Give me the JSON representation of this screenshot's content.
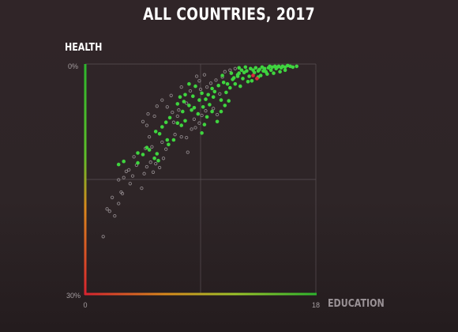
{
  "chart_data": {
    "type": "scatter",
    "title": "ALL COUNTRIES, 2017",
    "ylabel": "HEALTH",
    "xlabel": "EDUCATION",
    "xlim": [
      0,
      18
    ],
    "ylim": [
      0,
      30
    ],
    "y_inverted": true,
    "x_ticks": [
      "0",
      "18"
    ],
    "y_ticks": [
      "0%",
      "30%"
    ],
    "grid": true,
    "legend": "none",
    "colors": {
      "green": "#3fd43f",
      "grey": "#8d8689",
      "red": "#e0283a",
      "axis_top": "#2db52d",
      "axis_mid": "#d98a1c",
      "axis_end": "#d7222f"
    },
    "series": [
      {
        "color": "green",
        "points": [
          [
            2.6,
            13.1
          ],
          [
            3.0,
            12.7
          ],
          [
            4.1,
            12.9
          ],
          [
            4.1,
            11.6
          ],
          [
            4.5,
            11.8
          ],
          [
            4.8,
            10.9
          ],
          [
            5.0,
            11.2
          ],
          [
            5.4,
            12.3
          ],
          [
            5.7,
            12.6
          ],
          [
            5.6,
            11.7
          ],
          [
            5.5,
            8.8
          ],
          [
            5.8,
            9.1
          ],
          [
            6.0,
            8.2
          ],
          [
            6.4,
            9.9
          ],
          [
            6.5,
            10.5
          ],
          [
            6.9,
            9.9
          ],
          [
            6.3,
            7.6
          ],
          [
            6.6,
            7.0
          ],
          [
            7.2,
            7.7
          ],
          [
            7.5,
            8.0
          ],
          [
            7.8,
            7.4
          ],
          [
            7.6,
            6.2
          ],
          [
            7.2,
            5.2
          ],
          [
            7.7,
            4.9
          ],
          [
            8.1,
            5.4
          ],
          [
            7.4,
            4.3
          ],
          [
            7.8,
            4.0
          ],
          [
            8.4,
            4.2
          ],
          [
            8.1,
            2.6
          ],
          [
            8.6,
            2.9
          ],
          [
            8.5,
            5.7
          ],
          [
            8.9,
            4.7
          ],
          [
            9.1,
            3.8
          ],
          [
            9.4,
            4.6
          ],
          [
            9.2,
            5.6
          ],
          [
            9.5,
            6.9
          ],
          [
            9.9,
            6.2
          ],
          [
            9.6,
            4.0
          ],
          [
            9.9,
            3.2
          ],
          [
            10.1,
            3.6
          ],
          [
            10.6,
            4.7
          ],
          [
            10.4,
            2.8
          ],
          [
            10.8,
            2.4
          ],
          [
            11.1,
            2.6
          ],
          [
            11.0,
            3.7
          ],
          [
            11.3,
            3.1
          ],
          [
            10.6,
            6.2
          ],
          [
            11.5,
            2.0
          ],
          [
            11.6,
            1.8
          ],
          [
            11.9,
            1.6
          ],
          [
            12.0,
            1.2
          ],
          [
            12.2,
            0.8
          ],
          [
            12.4,
            1.1
          ],
          [
            12.6,
            0.9
          ],
          [
            12.8,
            1.6
          ],
          [
            12.3,
            1.9
          ],
          [
            12.9,
            0.6
          ],
          [
            13.1,
            0.8
          ],
          [
            13.2,
            1.1
          ],
          [
            13.3,
            0.5
          ],
          [
            13.5,
            0.9
          ],
          [
            13.6,
            0.7
          ],
          [
            13.7,
            1.5
          ],
          [
            13.8,
            0.4
          ],
          [
            14.0,
            0.6
          ],
          [
            14.1,
            1.0
          ],
          [
            14.3,
            0.5
          ],
          [
            14.4,
            0.3
          ],
          [
            14.5,
            0.8
          ],
          [
            14.6,
            0.4
          ],
          [
            14.8,
            0.3
          ],
          [
            14.9,
            0.6
          ],
          [
            15.0,
            0.4
          ],
          [
            15.1,
            0.3
          ],
          [
            15.3,
            0.5
          ],
          [
            15.4,
            0.3
          ],
          [
            15.6,
            0.4
          ],
          [
            15.8,
            0.2
          ],
          [
            16.0,
            0.3
          ],
          [
            16.2,
            0.4
          ],
          [
            16.5,
            0.3
          ],
          [
            12.7,
            2.3
          ],
          [
            11.9,
            1.4
          ],
          [
            13.5,
            1.7
          ],
          [
            12.5,
            0.4
          ],
          [
            13.0,
            2.2
          ],
          [
            14.2,
            1.3
          ],
          [
            12.1,
            2.9
          ],
          [
            11.2,
            4.8
          ],
          [
            10.3,
            7.5
          ],
          [
            10.9,
            5.4
          ],
          [
            9.1,
            9.0
          ],
          [
            8.8,
            6.5
          ],
          [
            9.3,
            7.9
          ],
          [
            8.3,
            6.0
          ],
          [
            9.7,
            5.3
          ],
          [
            10.0,
            4.3
          ],
          [
            11.7,
            2.6
          ],
          [
            10.7,
            1.5
          ],
          [
            11.4,
            1.2
          ],
          [
            12.0,
            0.5
          ],
          [
            14.7,
            1.2
          ],
          [
            13.9,
            0.9
          ],
          [
            15.6,
            0.8
          ],
          [
            15.2,
            1.0
          ]
        ]
      },
      {
        "color": "grey",
        "points": [
          [
            1.4,
            22.5
          ],
          [
            1.7,
            18.9
          ],
          [
            1.9,
            19.2
          ],
          [
            2.3,
            19.8
          ],
          [
            2.1,
            17.4
          ],
          [
            2.6,
            18.2
          ],
          [
            2.8,
            16.7
          ],
          [
            2.6,
            15.1
          ],
          [
            3.0,
            14.8
          ],
          [
            2.9,
            16.9
          ],
          [
            3.2,
            14.0
          ],
          [
            3.5,
            15.6
          ],
          [
            3.7,
            14.6
          ],
          [
            3.4,
            13.8
          ],
          [
            3.8,
            12.1
          ],
          [
            4.0,
            13.2
          ],
          [
            4.4,
            16.2
          ],
          [
            4.6,
            14.3
          ],
          [
            4.8,
            13.4
          ],
          [
            5.1,
            12.8
          ],
          [
            5.3,
            14.1
          ],
          [
            5.5,
            13.0
          ],
          [
            5.8,
            13.5
          ],
          [
            6.1,
            12.3
          ],
          [
            6.3,
            11.1
          ],
          [
            6.0,
            10.2
          ],
          [
            5.0,
            9.5
          ],
          [
            4.8,
            8.0
          ],
          [
            4.5,
            7.5
          ],
          [
            4.9,
            6.5
          ],
          [
            5.4,
            6.8
          ],
          [
            5.6,
            5.5
          ],
          [
            6.0,
            4.7
          ],
          [
            6.4,
            5.6
          ],
          [
            6.7,
            4.1
          ],
          [
            6.8,
            6.3
          ],
          [
            7.2,
            6.8
          ],
          [
            7.0,
            9.2
          ],
          [
            7.5,
            9.5
          ],
          [
            7.9,
            9.6
          ],
          [
            8.0,
            11.5
          ],
          [
            8.3,
            8.5
          ],
          [
            8.6,
            8.3
          ],
          [
            8.9,
            7.7
          ],
          [
            8.5,
            7.2
          ],
          [
            9.1,
            6.7
          ],
          [
            9.4,
            6.1
          ],
          [
            9.0,
            3.3
          ],
          [
            9.5,
            3.0
          ],
          [
            9.8,
            2.5
          ],
          [
            10.2,
            2.1
          ],
          [
            10.7,
            1.7
          ],
          [
            10.9,
            1.0
          ],
          [
            11.3,
            0.8
          ],
          [
            11.7,
            0.6
          ],
          [
            8.7,
            1.6
          ],
          [
            8.9,
            2.2
          ],
          [
            9.3,
            1.4
          ],
          [
            7.9,
            5.1
          ],
          [
            8.2,
            3.5
          ],
          [
            7.5,
            3.0
          ],
          [
            10.0,
            5.8
          ],
          [
            10.3,
            6.6
          ],
          [
            10.5,
            3.9
          ],
          [
            7.3,
            6.0
          ],
          [
            6.9,
            7.6
          ],
          [
            5.2,
            10.8
          ],
          [
            4.7,
            11.0
          ]
        ]
      },
      {
        "color": "red",
        "points": [
          [
            13.1,
            1.5
          ],
          [
            13.4,
            1.9
          ]
        ]
      }
    ]
  }
}
